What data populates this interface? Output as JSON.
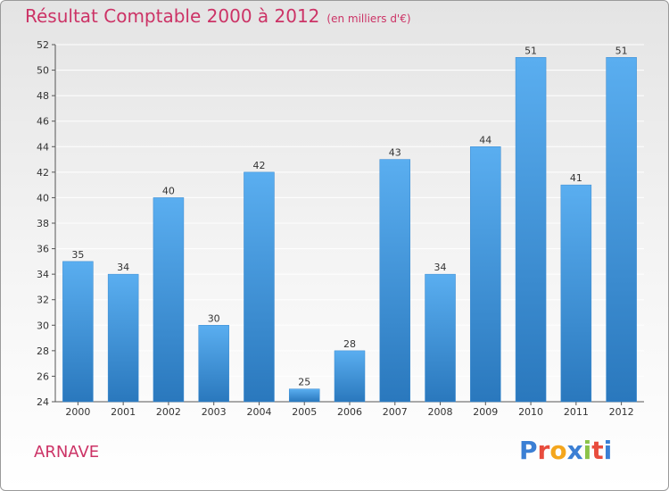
{
  "header": {
    "title": "Résultat Comptable 2000 à 2012",
    "subtitle": "(en milliers d'€)"
  },
  "footer": {
    "place": "ARNAVE",
    "logo_letters": [
      "P",
      "r",
      "o",
      "x",
      "i",
      "t",
      "i"
    ],
    "logo_colors": [
      "#3b7fd4",
      "#e84c3d",
      "#f4a61d",
      "#3b7fd4",
      "#8bc34a",
      "#e84c3d",
      "#3b7fd4"
    ]
  },
  "chart_data": {
    "type": "bar",
    "title": "Résultat Comptable 2000 à 2012",
    "subtitle": "(en milliers d'€)",
    "xlabel": "",
    "ylabel": "",
    "categories": [
      "2000",
      "2001",
      "2002",
      "2003",
      "2004",
      "2005",
      "2006",
      "2007",
      "2008",
      "2009",
      "2010",
      "2011",
      "2012"
    ],
    "values": [
      35,
      34,
      40,
      30,
      42,
      25,
      28,
      43,
      34,
      44,
      51,
      41,
      51
    ],
    "ylim": [
      24,
      52
    ],
    "yticks": [
      24,
      26,
      28,
      30,
      32,
      34,
      36,
      38,
      40,
      42,
      44,
      46,
      48,
      50,
      52
    ],
    "grid": true,
    "bar_color": "#4a9fe0"
  }
}
